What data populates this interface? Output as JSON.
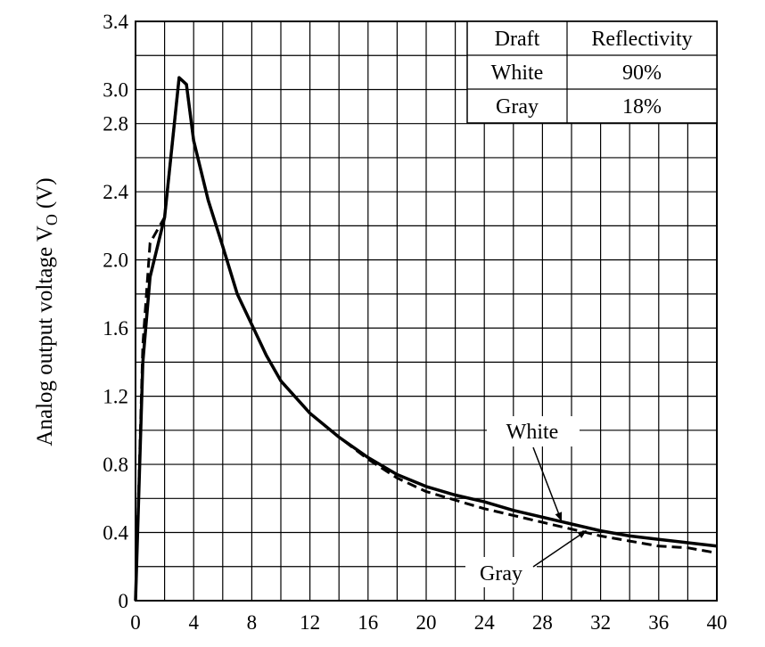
{
  "chart_data": {
    "type": "line",
    "xlabel": "",
    "ylabel": "Analog output voltage V",
    "ylabel_subscript": "O",
    "ylabel_unit": "(V)",
    "xlim": [
      0,
      40
    ],
    "ylim": [
      0,
      3.4
    ],
    "x_ticks": [
      "0",
      "4",
      "8",
      "12",
      "16",
      "20",
      "24",
      "28",
      "32",
      "36",
      "40"
    ],
    "y_ticks": [
      "0",
      "0.4",
      "0.8",
      "1.2",
      "1.6",
      "2.0",
      "2.4",
      "2.8",
      "3.0",
      "3.4"
    ],
    "grid": true,
    "table": {
      "headers": [
        "Draft",
        "Reflectivity"
      ],
      "rows": [
        [
          "White",
          "90%"
        ],
        [
          "Gray",
          "18%"
        ]
      ]
    },
    "series": [
      {
        "name": "White",
        "style": "solid",
        "color": "#000000",
        "points": [
          [
            0,
            0
          ],
          [
            0.5,
            1.4
          ],
          [
            1,
            1.9
          ],
          [
            2,
            2.25
          ],
          [
            3,
            3.07
          ],
          [
            3.5,
            3.03
          ],
          [
            4,
            2.7
          ],
          [
            5,
            2.35
          ],
          [
            6,
            2.08
          ],
          [
            7,
            1.8
          ],
          [
            8,
            1.62
          ],
          [
            9,
            1.44
          ],
          [
            10,
            1.29
          ],
          [
            12,
            1.1
          ],
          [
            14,
            0.96
          ],
          [
            16,
            0.84
          ],
          [
            18,
            0.74
          ],
          [
            20,
            0.67
          ],
          [
            22,
            0.62
          ],
          [
            24,
            0.58
          ],
          [
            26,
            0.53
          ],
          [
            28,
            0.49
          ],
          [
            30,
            0.45
          ],
          [
            32,
            0.41
          ],
          [
            34,
            0.38
          ],
          [
            36,
            0.36
          ],
          [
            38,
            0.34
          ],
          [
            40,
            0.32
          ]
        ]
      },
      {
        "name": "Gray",
        "style": "dashed",
        "color": "#000000",
        "points": [
          [
            0,
            0
          ],
          [
            0.5,
            1.5
          ],
          [
            1,
            2.1
          ],
          [
            2,
            2.25
          ],
          [
            3,
            3.07
          ],
          [
            3.5,
            3.03
          ],
          [
            4,
            2.7
          ],
          [
            5,
            2.35
          ],
          [
            6,
            2.08
          ],
          [
            7,
            1.8
          ],
          [
            8,
            1.62
          ],
          [
            9,
            1.44
          ],
          [
            10,
            1.29
          ],
          [
            12,
            1.1
          ],
          [
            14,
            0.96
          ],
          [
            16,
            0.83
          ],
          [
            18,
            0.72
          ],
          [
            20,
            0.64
          ],
          [
            22,
            0.59
          ],
          [
            24,
            0.54
          ],
          [
            26,
            0.5
          ],
          [
            28,
            0.46
          ],
          [
            30,
            0.42
          ],
          [
            32,
            0.38
          ],
          [
            34,
            0.35
          ],
          [
            36,
            0.32
          ],
          [
            38,
            0.31
          ],
          [
            40,
            0.28
          ]
        ]
      }
    ],
    "annotations": [
      {
        "text": "White",
        "target_series": "White"
      },
      {
        "text": "Gray",
        "target_series": "Gray"
      }
    ]
  }
}
